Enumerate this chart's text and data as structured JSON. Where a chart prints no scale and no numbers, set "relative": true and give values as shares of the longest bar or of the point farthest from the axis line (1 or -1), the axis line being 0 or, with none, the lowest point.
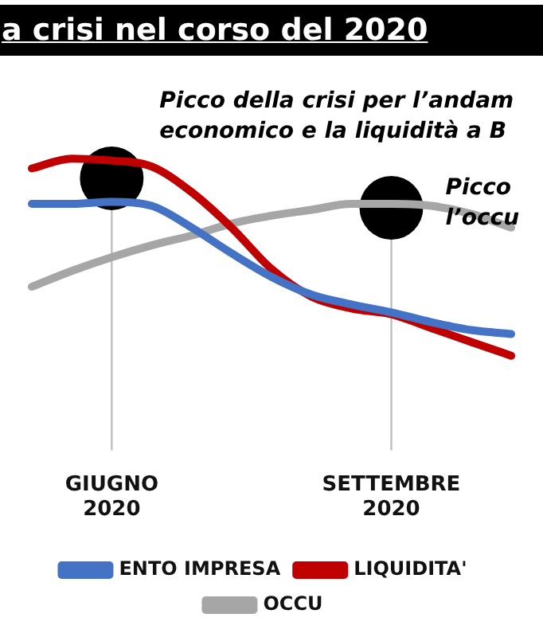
{
  "chart_data": {
    "type": "line",
    "title": "a crisi nel corso del 2020",
    "relative": true,
    "categories": [
      null,
      null,
      "GIUGNO 2020",
      null,
      null,
      null,
      null,
      null,
      null,
      "SETTEMBRE 2020",
      null,
      null,
      null
    ],
    "series": [
      {
        "name": "ENTO IMPRESA",
        "color": "#4472c4",
        "values": [
          0.77,
          0.77,
          0.78,
          0.76,
          0.65,
          0.52,
          0.4,
          0.31,
          0.26,
          0.22,
          0.17,
          0.13,
          0.11
        ]
      },
      {
        "name": "LIQUIDITA'",
        "color": "#c00000",
        "values": [
          0.95,
          1,
          0.99,
          0.96,
          0.83,
          0.65,
          0.44,
          0.3,
          0.24,
          0.21,
          0.14,
          0.07,
          0
        ]
      },
      {
        "name": "OCCU",
        "color": "#a6a6a6",
        "values": [
          0.35,
          0.43,
          0.5,
          0.56,
          0.61,
          0.67,
          0.71,
          0.74,
          0.77,
          0.77,
          0.76,
          0.72,
          0.65
        ]
      },
      {
        "type": "scatter",
        "color": "#000000",
        "marker": "circle",
        "x": [
          "GIUGNO 2020",
          "SETTEMBRE 2020"
        ],
        "values": [
          0.9,
          0.75
        ]
      }
    ],
    "marker": "none",
    "legend": "bottom",
    "grid": false,
    "ref_lines": [
      {
        "axis": "x",
        "value": "GIUGNO 2020",
        "color": "#bfbfbf"
      },
      {
        "axis": "x",
        "value": "SETTEMBRE 2020",
        "color": "#bfbfbf"
      }
    ],
    "annotations": [
      {
        "text": "Picco della crisi per l’andam economico e la liquidità a B",
        "x": "GIUGNO 2020",
        "y": 0.9
      },
      {
        "text": "Picco l’occu",
        "x": "SETTEMBRE 2020",
        "y": 0.75
      }
    ]
  }
}
